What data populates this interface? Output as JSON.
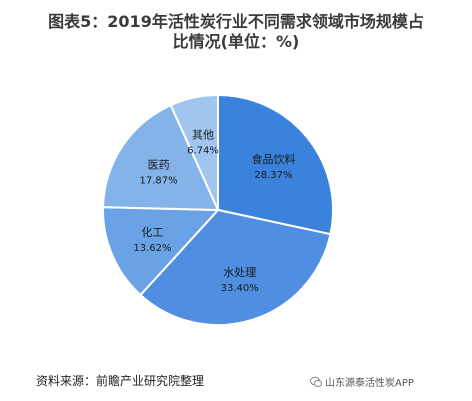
{
  "header": {
    "title_line1": "图表5：2019年活性炭行业不同需求领域市场规模占",
    "title_line2": "比情况(单位：%)"
  },
  "chart_data": {
    "type": "pie",
    "title": "图表5：2019年活性炭行业不同需求领域市场规模占比情况(单位：%)",
    "slices": [
      {
        "label": "食品饮料",
        "value": 28.37,
        "value_label": "28.37%",
        "color": "#3b82dd"
      },
      {
        "label": "水处理",
        "value": 33.4,
        "value_label": "33.40%",
        "color": "#4f8ee0"
      },
      {
        "label": "化工",
        "value": 13.62,
        "value_label": "13.62%",
        "color": "#6aa2e6"
      },
      {
        "label": "医药",
        "value": 17.87,
        "value_label": "17.87%",
        "color": "#84b3ea"
      },
      {
        "label": "其他",
        "value": 6.74,
        "value_label": "6.74%",
        "color": "#a0c5ef"
      }
    ]
  },
  "footer": {
    "source": "资料来源：前瞻产业研究院整理",
    "badge_text": "山东源泰活性炭APP",
    "badge_icon": "wechat-icon"
  }
}
